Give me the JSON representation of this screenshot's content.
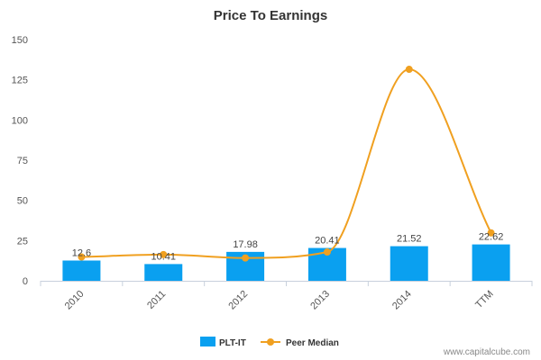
{
  "chart_data": {
    "type": "bar",
    "title": "Price To Earnings",
    "categories": [
      "2010",
      "2011",
      "2012",
      "2013",
      "2014",
      "TTM"
    ],
    "ylim": [
      0,
      150
    ],
    "yticks": [
      0,
      25,
      50,
      75,
      100,
      125,
      150
    ],
    "grid": false,
    "legend_position": "bottom",
    "series": [
      {
        "name": "PLT-IT",
        "kind": "bar",
        "color": "#0aa0f0",
        "values": [
          12.6,
          10.41,
          17.98,
          20.41,
          21.52,
          22.62
        ],
        "labels": [
          "12.6",
          "10.41",
          "17.98",
          "20.41",
          "21.52",
          "22.62"
        ]
      },
      {
        "name": "Peer Median",
        "kind": "line",
        "color": "#f0a020",
        "values": [
          14.8,
          16.3,
          14.2,
          17.9,
          131.5,
          29.8
        ]
      }
    ]
  },
  "credit": "www.capitalcube.com"
}
